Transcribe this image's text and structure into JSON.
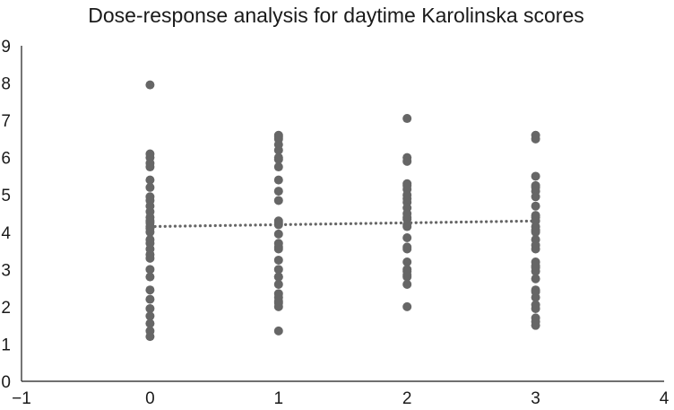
{
  "chart_data": {
    "type": "scatter",
    "title": "Dose-response analysis for daytime Karolinska scores",
    "xlabel": "",
    "ylabel": "",
    "xlim": [
      -1,
      4
    ],
    "ylim": [
      0,
      9
    ],
    "x_ticks": [
      -1,
      0,
      1,
      2,
      3,
      4
    ],
    "x_tick_labels": [
      "−1",
      "0",
      "1",
      "2",
      "3",
      "4"
    ],
    "y_ticks": [
      0,
      1,
      2,
      3,
      4,
      5,
      6,
      7,
      8,
      9
    ],
    "y_tick_labels": [
      "0",
      "1",
      "2",
      "3",
      "4",
      "5",
      "6",
      "7",
      "8",
      "9"
    ],
    "grid": false,
    "legend": "none",
    "marker_color": "#666666",
    "trendline_color": "#666666",
    "series": [
      {
        "x": [
          0,
          0,
          0,
          0,
          0,
          0,
          0,
          0,
          0,
          0,
          0,
          0,
          0,
          0,
          0,
          0,
          0,
          0,
          0,
          0,
          0,
          0,
          0,
          0,
          0,
          0,
          0,
          0,
          0,
          0,
          0
        ],
        "y": [
          7.95,
          6.1,
          6.0,
          5.85,
          5.4,
          5.2,
          4.95,
          4.7,
          4.55,
          4.4,
          4.25,
          4.1,
          4.0,
          3.8,
          3.7,
          3.4,
          3.3,
          3.0,
          2.8,
          2.45,
          2.2,
          1.95,
          1.75,
          1.55,
          1.35,
          1.2,
          3.55,
          4.15,
          4.3,
          4.85,
          5.75
        ]
      },
      {
        "x": [
          1,
          1,
          1,
          1,
          1,
          1,
          1,
          1,
          1,
          1,
          1,
          1,
          1,
          1,
          1,
          1,
          1,
          1,
          1,
          1,
          1,
          1,
          1,
          1,
          1,
          1,
          1,
          1,
          1
        ],
        "y": [
          6.6,
          6.5,
          6.35,
          6.2,
          6.0,
          5.75,
          5.4,
          5.1,
          4.85,
          4.3,
          4.2,
          3.95,
          3.7,
          3.55,
          3.25,
          3.0,
          2.8,
          2.6,
          2.35,
          2.25,
          2.15,
          2.0,
          1.35,
          6.55,
          5.95,
          4.25,
          3.6,
          2.8,
          2.1
        ]
      },
      {
        "x": [
          2,
          2,
          2,
          2,
          2,
          2,
          2,
          2,
          2,
          2,
          2,
          2,
          2,
          2,
          2,
          2,
          2,
          2,
          2,
          2,
          2,
          2,
          2,
          2,
          2
        ],
        "y": [
          7.05,
          6.0,
          5.9,
          5.3,
          5.15,
          5.0,
          4.8,
          4.65,
          4.5,
          4.35,
          4.15,
          3.85,
          3.55,
          3.2,
          2.95,
          2.8,
          2.6,
          2.0,
          5.25,
          4.9,
          4.4,
          4.2,
          3.6,
          3.0,
          2.85
        ]
      },
      {
        "x": [
          3,
          3,
          3,
          3,
          3,
          3,
          3,
          3,
          3,
          3,
          3,
          3,
          3,
          3,
          3,
          3,
          3,
          3,
          3,
          3,
          3,
          3,
          3,
          3,
          3,
          3,
          3,
          3,
          3,
          3
        ],
        "y": [
          6.6,
          6.5,
          5.5,
          5.25,
          5.1,
          4.95,
          4.7,
          4.4,
          4.3,
          4.15,
          4.0,
          3.8,
          3.55,
          3.2,
          3.05,
          2.95,
          2.75,
          2.45,
          2.25,
          2.05,
          1.7,
          1.6,
          1.5,
          4.45,
          3.65,
          3.1,
          2.4,
          1.95,
          5.2,
          4.05
        ]
      }
    ],
    "trendline": {
      "x": [
        0,
        3
      ],
      "y": [
        4.15,
        4.3
      ],
      "style": "dotted"
    }
  }
}
